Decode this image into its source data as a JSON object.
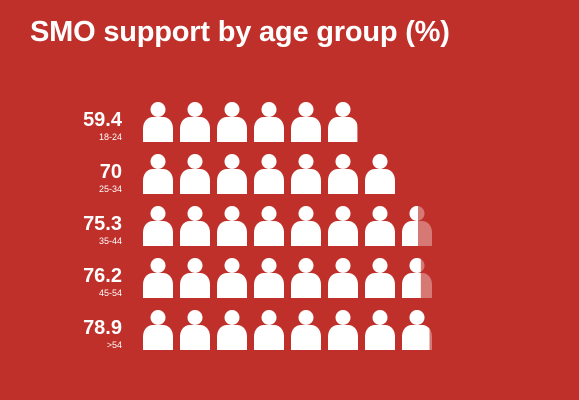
{
  "chart_data": {
    "type": "pictogram",
    "title": "SMO support by age group (%)",
    "unit": "%",
    "icon": "person-icon",
    "icon_value": 10,
    "categories": [
      "18-24",
      "25-34",
      "35-44",
      "45-54",
      ">54"
    ],
    "values": [
      59.4,
      70,
      75.3,
      76.2,
      78.9
    ],
    "value_labels": [
      "59.4",
      "70",
      "75.3",
      "76.2",
      "78.9"
    ],
    "colors": {
      "background": "#c0302a",
      "icon": "#ffffff",
      "text": "#ffffff"
    }
  }
}
